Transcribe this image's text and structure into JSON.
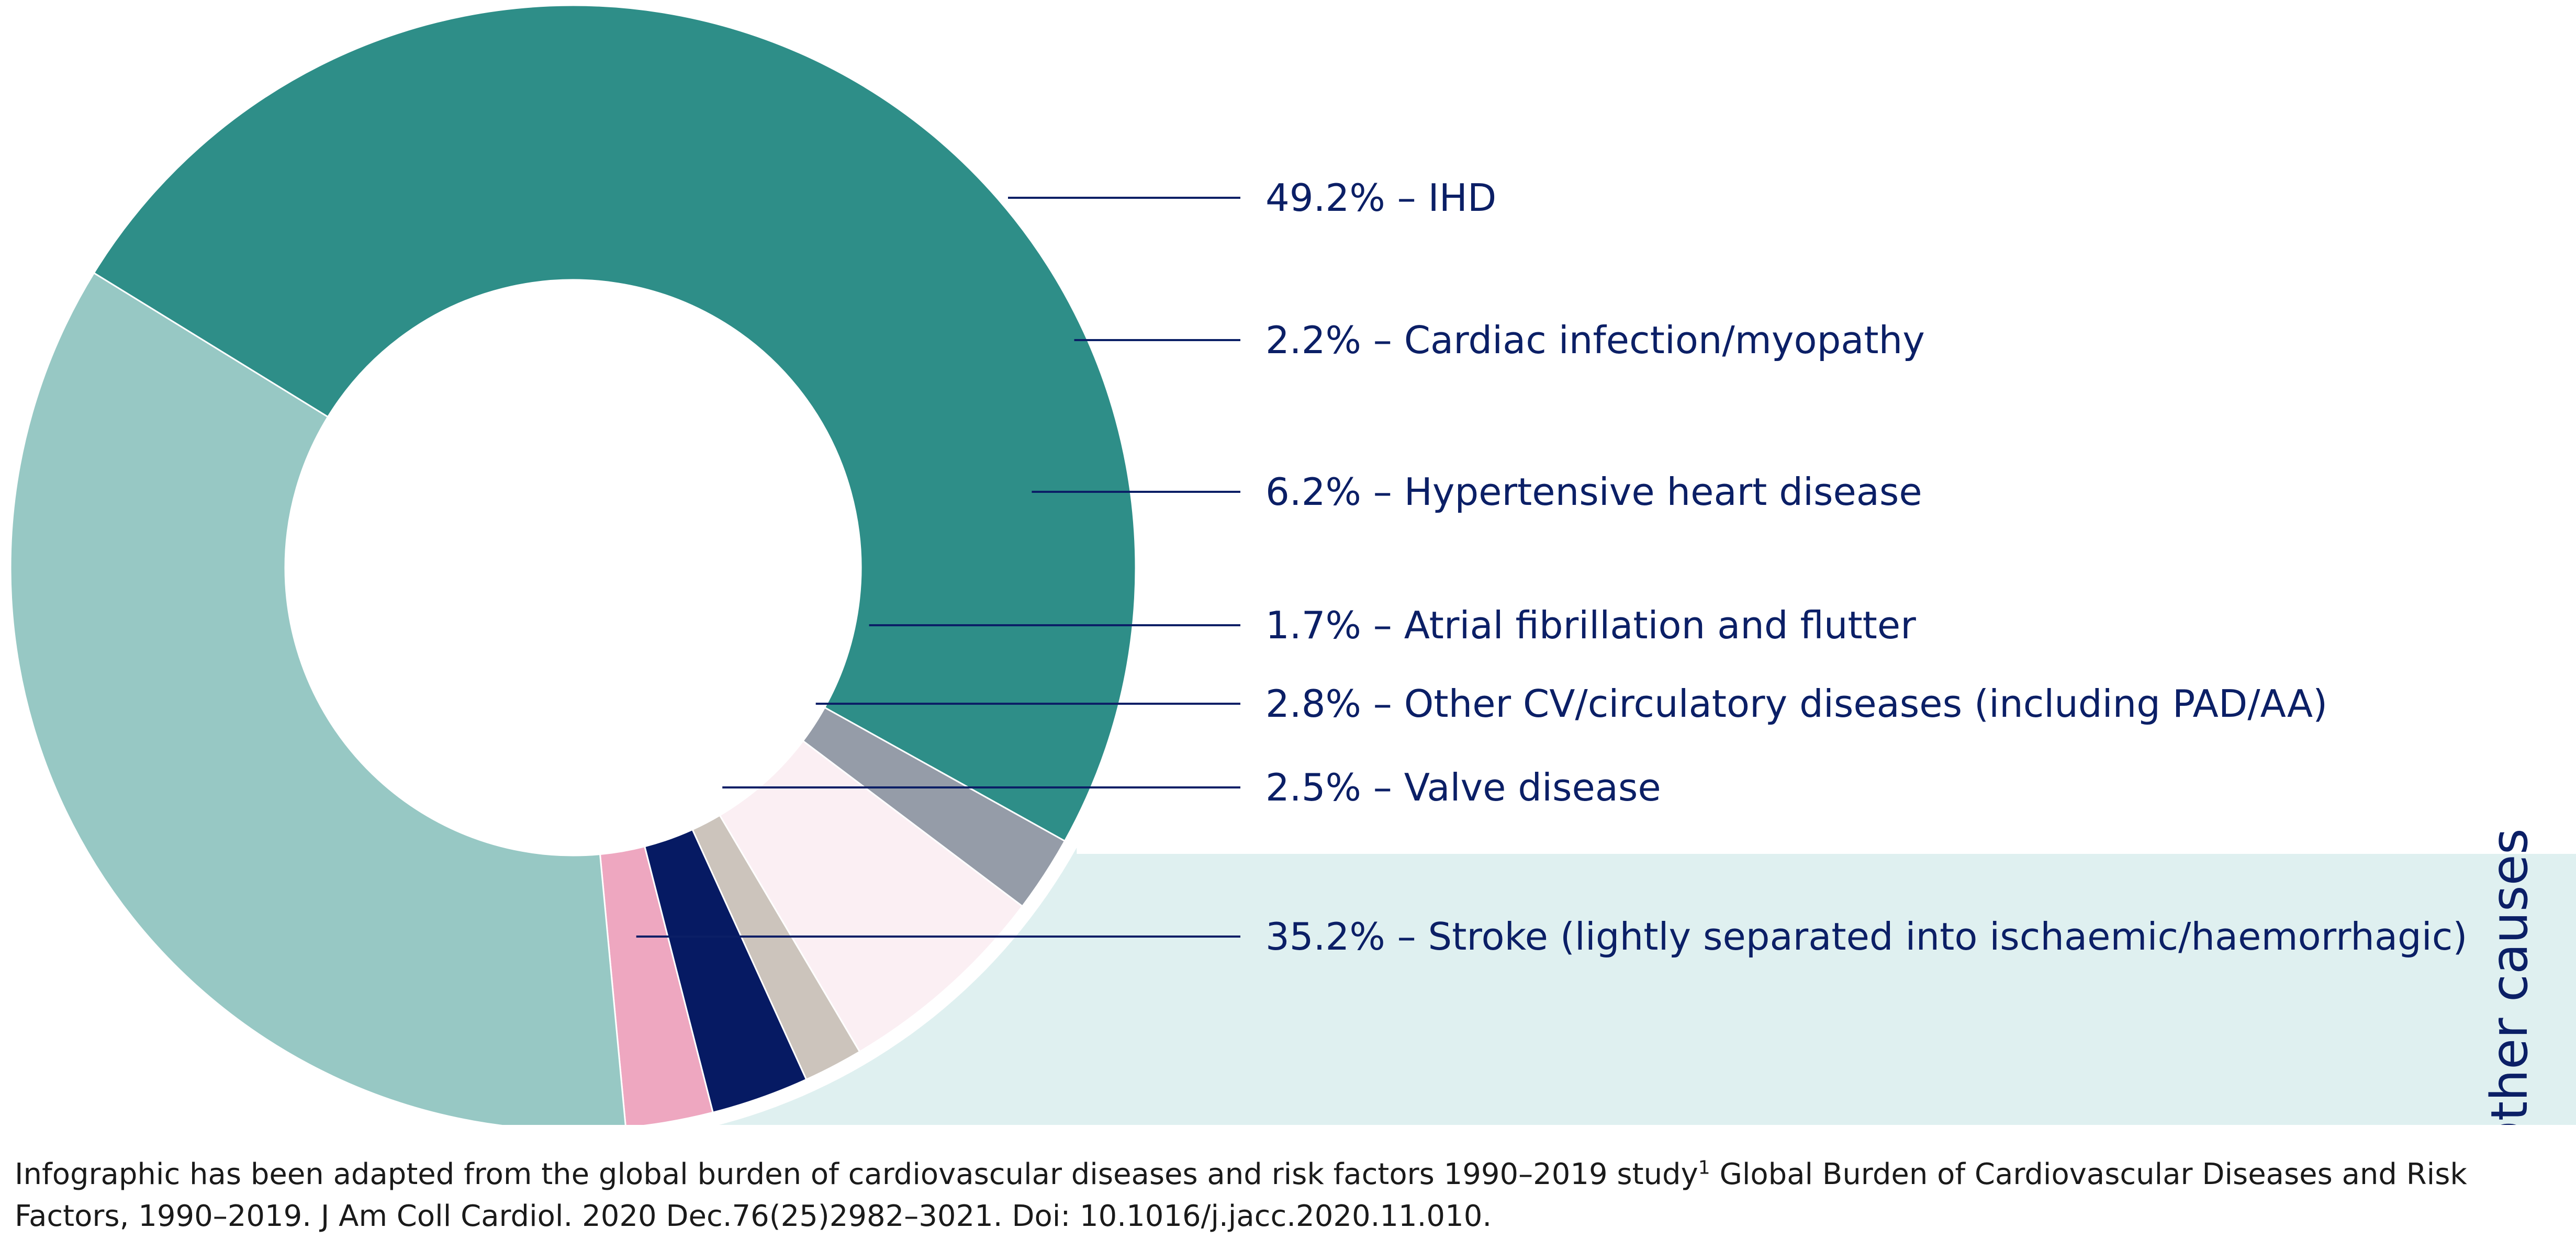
{
  "chart_data": {
    "type": "pie",
    "variant": "donut",
    "unit": "%",
    "title": "",
    "slices": [
      {
        "label": "49.2% – IHD",
        "name": "IHD",
        "value": 49.2,
        "color": "#2e8e88"
      },
      {
        "label": "2.2% – Cardiac infection/myopathy",
        "name": "Cardiac infection/myopathy",
        "value": 2.2,
        "color": "#959ca8"
      },
      {
        "label": "6.2% – Hypertensive heart disease",
        "name": "Hypertensive heart disease",
        "value": 6.2,
        "color": "#fbeff3"
      },
      {
        "label": "1.7% – Atrial fibrillation and flutter",
        "name": "Atrial fibrillation and flutter",
        "value": 1.7,
        "color": "#ccc4bc"
      },
      {
        "label": "2.8% – Other CV/circulatory diseases (including PAD/AA)",
        "name": "Other CV/circulatory diseases (including PAD/AA)",
        "value": 2.8,
        "color": "#061a63"
      },
      {
        "label": "2.5% – Valve disease",
        "name": "Valve disease",
        "value": 2.5,
        "color": "#eea7c0"
      },
      {
        "label": "35.2% – Stroke (lightly separated into ischaemic/haemorrhagic)",
        "name": "Stroke (lightly separated into ischaemic/haemorrhagic)",
        "value": 35.2,
        "color": "#97c8c4"
      }
    ],
    "groups": [
      {
        "label": "Other causes",
        "members": [
          1,
          2,
          3,
          4,
          5
        ],
        "color": "#dff0f0"
      }
    ],
    "label_color": "#0b1f66"
  },
  "footnote": {
    "text_part1": "Infographic has been adapted from the global burden of cardiovascular diseases and risk factors 1990–2019 study",
    "superscript": "1",
    "text_part2": " Global Burden of Cardiovascular Diseases and Risk Factors, 1990–2019. J Am Coll Cardiol. 2020 Dec.76(25)2982–3021. Doi: 10.1016/j.jacc.2020.11.010."
  }
}
